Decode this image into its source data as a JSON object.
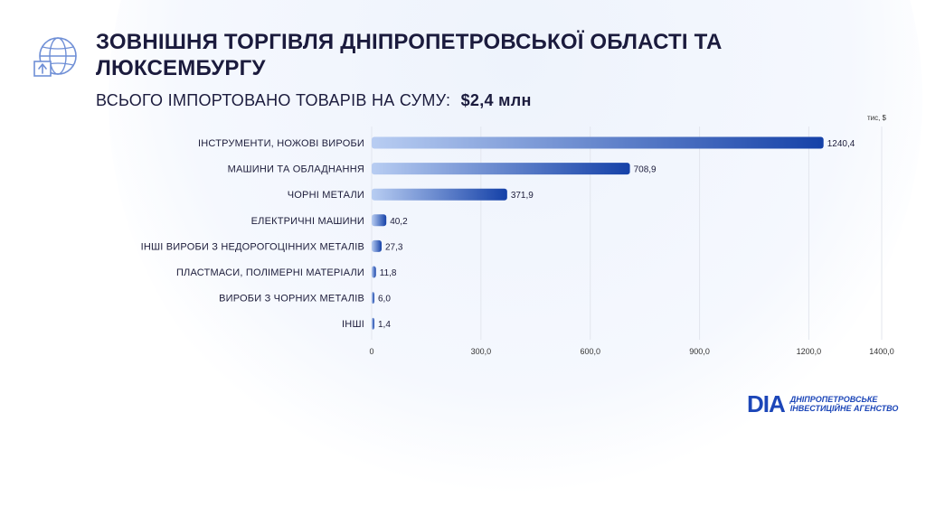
{
  "header": {
    "title": "ЗОВНІШНЯ ТОРГІВЛЯ ДНІПРОПЕТРОВСЬКОЇ ОБЛАСТІ ТА ЛЮКСЕМБУРГУ",
    "subtitle_label": "ВСЬОГО ІМПОРТОВАНО ТОВАРІВ НА СУМУ:",
    "subtitle_amount": "$2,4 млн",
    "icon": "globe-export-icon"
  },
  "chart_data": {
    "type": "bar",
    "orientation": "horizontal",
    "unit_label": "тис, $",
    "categories": [
      "ІНСТРУМЕНТИ, НОЖОВІ ВИРОБИ",
      "МАШИНИ ТА ОБЛАДНАННЯ",
      "ЧОРНІ МЕТАЛИ",
      "ЕЛЕКТРИЧНІ МАШИНИ",
      "ІНШІ ВИРОБИ З НЕДОРОГОЦІННИХ МЕТАЛІВ",
      "ПЛАСТМАСИ, ПОЛІМЕРНІ МАТЕРІАЛИ",
      "ВИРОБИ З ЧОРНИХ МЕТАЛІВ",
      "ІНШІ"
    ],
    "values": [
      1240.4,
      708.9,
      371.9,
      40.2,
      27.3,
      11.8,
      6.0,
      1.4
    ],
    "value_labels": [
      "1240,4",
      "708,9",
      "371,9",
      "40,2",
      "27,3",
      "11,8",
      "6,0",
      "1,4"
    ],
    "xlim": [
      0,
      1400
    ],
    "x_ticks": [
      0,
      300,
      600,
      900,
      1200,
      1400
    ],
    "x_tick_labels": [
      "0",
      "300,0",
      "600,0",
      "900,0",
      "1200,0",
      "1400,0"
    ],
    "grid": true,
    "colors": {
      "bar_start": "#b8cdf2",
      "bar_end": "#1541a8",
      "grid": "#e3e6ee"
    }
  },
  "logo": {
    "mark": "DIA",
    "line1": "ДНІПРОПЕТРОВСЬКЕ",
    "line2": "ІНВЕСТИЦІЙНЕ АГЕНСТВО"
  }
}
